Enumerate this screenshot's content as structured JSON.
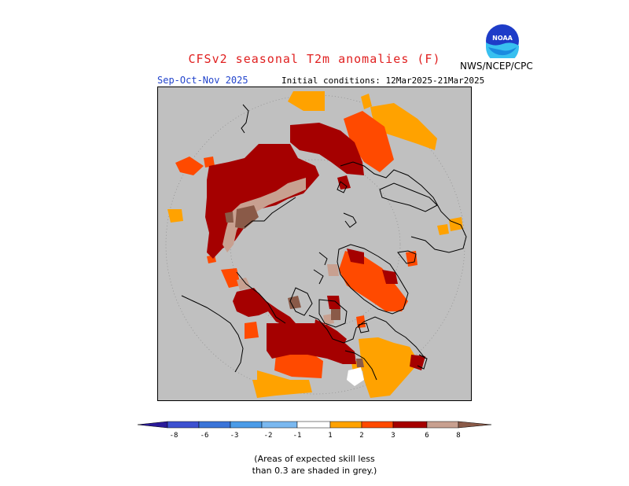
{
  "header": {
    "title": "CFSv2 seasonal T2m anomalies (F)",
    "org": "NWS/NCEP/CPC",
    "logo_text": "NOAA",
    "season": "Sep-Oct-Nov 2025",
    "initial_conditions": "Initial conditions: 12Mar2025-21Mar2025"
  },
  "colorbar": {
    "ticks": [
      "-8",
      "-6",
      "-3",
      "-2",
      "-1",
      "1",
      "2",
      "3",
      "6",
      "8"
    ],
    "colors": [
      "#2a1a9a",
      "#3c50d0",
      "#3a74d8",
      "#4a9be8",
      "#7ab8f0",
      "#ffffff",
      "#ffa200",
      "#ff4a00",
      "#a50000",
      "#c8a090",
      "#8a5a48"
    ]
  },
  "note": {
    "line1": "(Areas of expected skill less",
    "line2": "than 0.3 are shaded in grey.)"
  },
  "colors": {
    "title": "#e02020",
    "season": "#2244cc",
    "background": "#c0c0c0",
    "anom_1_2": "#ffa200",
    "anom_2_3": "#ff4a00",
    "anom_3_6": "#a50000",
    "anom_6_8": "#c8a090",
    "anom_gt8": "#8a5a48"
  }
}
